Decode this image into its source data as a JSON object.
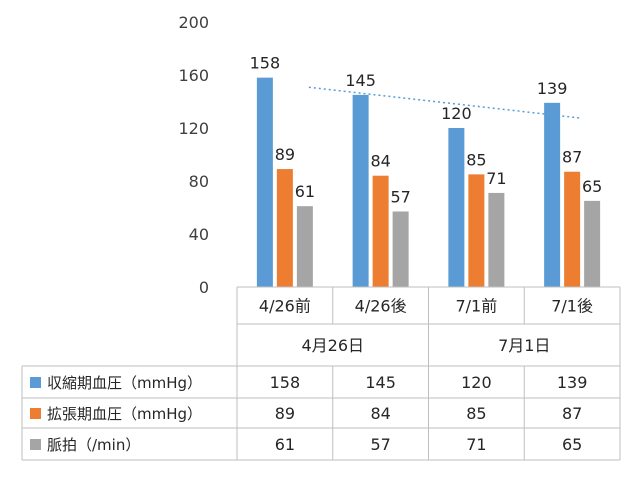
{
  "chart_data": {
    "type": "bar",
    "ylim": [
      0,
      200
    ],
    "yticks": [
      0,
      40,
      80,
      120,
      160,
      200
    ],
    "grid": false,
    "legend": "data-table-left",
    "categories": [
      "4/26前",
      "4/26後",
      "7/1前",
      "7/1後"
    ],
    "groups": [
      {
        "label": "4月26日",
        "span": 2
      },
      {
        "label": "7月1日",
        "span": 2
      }
    ],
    "series": [
      {
        "name": "収縮期血圧（mmHg）",
        "color": "#5B9BD5",
        "values": [
          158,
          145,
          120,
          139
        ]
      },
      {
        "name": "拡張期血圧（mmHg）",
        "color": "#ED7D31",
        "values": [
          89,
          84,
          85,
          87
        ]
      },
      {
        "name": "脈拍（/min）",
        "color": "#A5A5A5",
        "values": [
          61,
          57,
          71,
          65
        ]
      }
    ],
    "trendline": {
      "series": 0,
      "style": "dotted",
      "color": "#5B9BD5"
    }
  }
}
